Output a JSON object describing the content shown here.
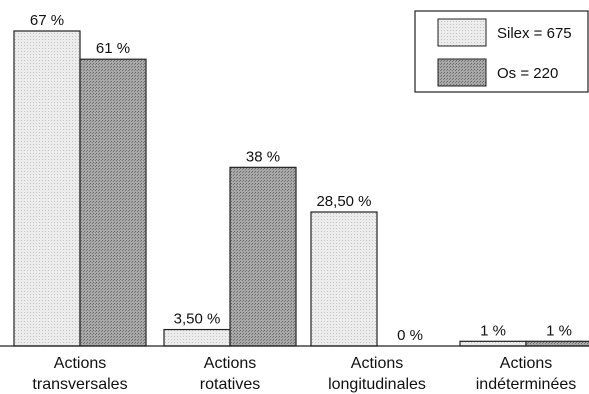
{
  "chart_data": {
    "type": "bar",
    "title": "",
    "xlabel": "",
    "ylabel": "",
    "ylim": [
      0,
      67
    ],
    "grid": false,
    "legend_position": "top-right",
    "categories": [
      [
        "Actions",
        "transversales"
      ],
      [
        "Actions",
        "rotatives"
      ],
      [
        "Actions",
        "longitudinales"
      ],
      [
        "Actions",
        "indéterminées"
      ]
    ],
    "series": [
      {
        "name": "Silex = 675",
        "color": "#e6e6e6",
        "values": [
          67,
          3.5,
          28.5,
          1
        ],
        "labels": [
          "67 %",
          "3,50 %",
          "28,50 %",
          "1 %"
        ]
      },
      {
        "name": "Os = 220",
        "color": "#9a9a9a",
        "values": [
          61,
          38,
          0,
          1
        ],
        "labels": [
          "61 %",
          "38 %",
          "0 %",
          "1 %"
        ]
      }
    ]
  }
}
